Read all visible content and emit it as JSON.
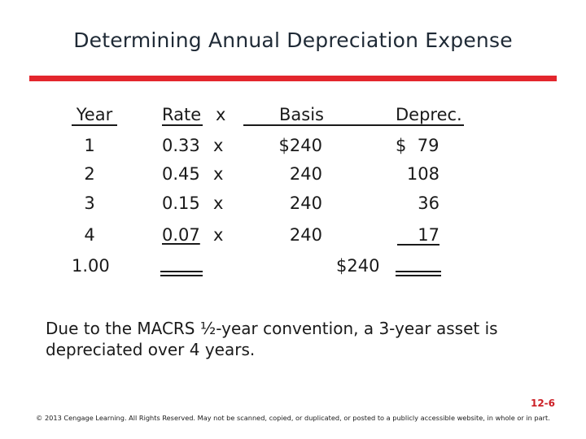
{
  "title": "Determining Annual Depreciation Expense",
  "table": {
    "headers": {
      "year": "Year",
      "rate": "Rate",
      "x": "x",
      "basis": "Basis",
      "deprec": "Deprec."
    },
    "rows": [
      {
        "year": "1",
        "rate": "0.33",
        "x": "x",
        "basis": "$240",
        "deprec": "$  79"
      },
      {
        "year": "2",
        "rate": "0.45",
        "x": "x",
        "basis": "240",
        "deprec": "108"
      },
      {
        "year": "3",
        "rate": "0.15",
        "x": "x",
        "basis": "240",
        "deprec": "36"
      },
      {
        "year": "4",
        "rate": "0.07",
        "x": "x",
        "basis": "240",
        "deprec": "17"
      }
    ],
    "total_year": "1.00",
    "total_deprec": "$240"
  },
  "note": "Due to the MACRS ½-year convention, a 3-year asset is depreciated over 4 years.",
  "page_number": "12-6",
  "footer": "© 2013 Cengage Learning. All Rights Reserved. May not be scanned, copied, or duplicated, or posted to a publicly accessible website, in whole or in part."
}
